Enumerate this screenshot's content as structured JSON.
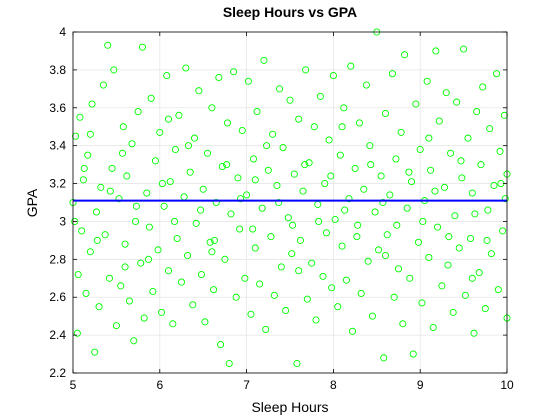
{
  "chart_data": {
    "type": "scatter",
    "title": "Sleep Hours vs GPA",
    "xlabel": "Sleep Hours",
    "ylabel": "GPA",
    "xlim": [
      5,
      10
    ],
    "ylim": [
      2.2,
      4
    ],
    "xticks": [
      5,
      6,
      7,
      8,
      9,
      10
    ],
    "xtick_labels": [
      "5",
      "6",
      "7",
      "8",
      "9",
      "10"
    ],
    "yticks": [
      2.2,
      2.4,
      2.6,
      2.8,
      3,
      3.2,
      3.4,
      3.6,
      3.8,
      4
    ],
    "ytick_labels": [
      "2.2",
      "2.4",
      "2.6",
      "2.8",
      "3",
      "3.2",
      "3.4",
      "3.6",
      "3.8",
      "4"
    ],
    "grid": true,
    "series": [
      {
        "type": "scatter",
        "marker": "circle-open",
        "color": "#00ff00",
        "points": [
          [
            5.0,
            3.1
          ],
          [
            5.03,
            3.45
          ],
          [
            5.05,
            2.41
          ],
          [
            5.06,
            2.72
          ],
          [
            5.08,
            3.55
          ],
          [
            5.1,
            2.95
          ],
          [
            5.12,
            3.22
          ],
          [
            5.15,
            2.62
          ],
          [
            5.17,
            3.35
          ],
          [
            5.2,
            2.84
          ],
          [
            5.22,
            3.62
          ],
          [
            5.25,
            2.31
          ],
          [
            5.27,
            3.05
          ],
          [
            5.3,
            2.55
          ],
          [
            5.32,
            3.18
          ],
          [
            5.35,
            3.72
          ],
          [
            5.37,
            2.93
          ],
          [
            5.4,
            3.93
          ],
          [
            5.42,
            2.7
          ],
          [
            5.45,
            3.28
          ],
          [
            5.47,
            3.8
          ],
          [
            5.5,
            2.45
          ],
          [
            5.53,
            3.12
          ],
          [
            5.55,
            2.66
          ],
          [
            5.58,
            3.5
          ],
          [
            5.6,
            2.88
          ],
          [
            5.62,
            3.24
          ],
          [
            5.65,
            2.58
          ],
          [
            5.68,
            3.41
          ],
          [
            5.7,
            2.37
          ],
          [
            5.72,
            3.0
          ],
          [
            5.75,
            3.58
          ],
          [
            5.78,
            2.78
          ],
          [
            5.8,
            3.92
          ],
          [
            5.82,
            2.49
          ],
          [
            5.85,
            3.15
          ],
          [
            5.88,
            2.97
          ],
          [
            5.9,
            3.65
          ],
          [
            5.92,
            2.63
          ],
          [
            5.95,
            3.32
          ],
          [
            5.98,
            2.85
          ],
          [
            6.0,
            3.47
          ],
          [
            6.02,
            2.52
          ],
          [
            6.05,
            3.08
          ],
          [
            6.08,
            3.77
          ],
          [
            6.1,
            2.74
          ],
          [
            6.12,
            3.21
          ],
          [
            6.15,
            2.46
          ],
          [
            6.18,
            3.38
          ],
          [
            6.2,
            2.91
          ],
          [
            6.22,
            3.56
          ],
          [
            6.25,
            2.68
          ],
          [
            6.28,
            3.13
          ],
          [
            6.3,
            3.81
          ],
          [
            6.32,
            2.82
          ],
          [
            6.35,
            3.26
          ],
          [
            6.38,
            2.56
          ],
          [
            6.4,
            3.44
          ],
          [
            6.42,
            2.99
          ],
          [
            6.45,
            3.69
          ],
          [
            6.48,
            2.72
          ],
          [
            6.5,
            3.17
          ],
          [
            6.52,
            2.47
          ],
          [
            6.55,
            3.36
          ],
          [
            6.58,
            2.89
          ],
          [
            6.6,
            3.6
          ],
          [
            6.62,
            2.64
          ],
          [
            6.65,
            3.1
          ],
          [
            6.68,
            3.76
          ],
          [
            6.7,
            2.35
          ],
          [
            6.72,
            3.29
          ],
          [
            6.75,
            2.8
          ],
          [
            6.78,
            3.52
          ],
          [
            6.8,
            2.25
          ],
          [
            6.82,
            3.04
          ],
          [
            6.85,
            3.79
          ],
          [
            6.88,
            2.6
          ],
          [
            6.9,
            3.23
          ],
          [
            6.92,
            2.96
          ],
          [
            6.95,
            3.48
          ],
          [
            6.98,
            2.7
          ],
          [
            7.0,
            3.14
          ],
          [
            7.02,
            3.74
          ],
          [
            7.05,
            2.51
          ],
          [
            7.08,
            3.33
          ],
          [
            7.1,
            2.86
          ],
          [
            7.12,
            3.58
          ],
          [
            7.15,
            2.67
          ],
          [
            7.18,
            3.07
          ],
          [
            7.2,
            3.85
          ],
          [
            7.22,
            2.43
          ],
          [
            7.25,
            3.27
          ],
          [
            7.28,
            2.92
          ],
          [
            7.3,
            3.46
          ],
          [
            7.32,
            2.61
          ],
          [
            7.35,
            3.19
          ],
          [
            7.38,
            3.7
          ],
          [
            7.4,
            2.76
          ],
          [
            7.42,
            3.39
          ],
          [
            7.45,
            2.53
          ],
          [
            7.48,
            3.02
          ],
          [
            7.5,
            3.64
          ],
          [
            7.52,
            2.83
          ],
          [
            7.55,
            3.25
          ],
          [
            7.58,
            2.25
          ],
          [
            7.6,
            3.54
          ],
          [
            7.62,
            2.9
          ],
          [
            7.65,
            3.16
          ],
          [
            7.68,
            3.8
          ],
          [
            7.7,
            2.59
          ],
          [
            7.72,
            3.31
          ],
          [
            7.75,
            2.78
          ],
          [
            7.78,
            3.5
          ],
          [
            7.8,
            2.48
          ],
          [
            7.82,
            3.09
          ],
          [
            7.85,
            3.66
          ],
          [
            7.88,
            2.71
          ],
          [
            7.9,
            3.2
          ],
          [
            7.92,
            2.94
          ],
          [
            7.95,
            3.43
          ],
          [
            7.98,
            2.65
          ],
          [
            8.0,
            3.77
          ],
          [
            8.02,
            3.01
          ],
          [
            8.05,
            2.55
          ],
          [
            8.08,
            3.35
          ],
          [
            8.1,
            2.87
          ],
          [
            8.12,
            3.6
          ],
          [
            8.15,
            2.69
          ],
          [
            8.18,
            3.12
          ],
          [
            8.2,
            3.82
          ],
          [
            8.22,
            2.42
          ],
          [
            8.25,
            3.28
          ],
          [
            8.28,
            2.98
          ],
          [
            8.3,
            3.52
          ],
          [
            8.32,
            2.62
          ],
          [
            8.35,
            3.17
          ],
          [
            8.38,
            3.72
          ],
          [
            8.4,
            2.79
          ],
          [
            8.42,
            3.4
          ],
          [
            8.45,
            2.5
          ],
          [
            8.48,
            3.05
          ],
          [
            8.5,
            4.0
          ],
          [
            8.52,
            2.85
          ],
          [
            8.55,
            3.24
          ],
          [
            8.58,
            2.28
          ],
          [
            8.6,
            3.57
          ],
          [
            8.62,
            2.93
          ],
          [
            8.65,
            3.14
          ],
          [
            8.68,
            3.78
          ],
          [
            8.7,
            2.6
          ],
          [
            8.72,
            3.33
          ],
          [
            8.75,
            2.75
          ],
          [
            8.78,
            3.47
          ],
          [
            8.8,
            2.46
          ],
          [
            8.82,
            3.88
          ],
          [
            8.85,
            3.07
          ],
          [
            8.88,
            2.7
          ],
          [
            8.9,
            3.21
          ],
          [
            8.92,
            2.3
          ],
          [
            8.95,
            3.62
          ],
          [
            8.98,
            2.89
          ],
          [
            9.0,
            3.38
          ],
          [
            9.02,
            2.57
          ],
          [
            9.05,
            3.11
          ],
          [
            9.08,
            3.74
          ],
          [
            9.1,
            2.81
          ],
          [
            9.12,
            3.27
          ],
          [
            9.15,
            2.44
          ],
          [
            9.18,
            3.9
          ],
          [
            9.2,
            2.97
          ],
          [
            9.22,
            3.53
          ],
          [
            9.25,
            2.66
          ],
          [
            9.28,
            3.18
          ],
          [
            9.3,
            3.68
          ],
          [
            9.32,
            2.77
          ],
          [
            9.35,
            3.36
          ],
          [
            9.38,
            2.52
          ],
          [
            9.4,
            3.03
          ],
          [
            9.42,
            3.63
          ],
          [
            9.45,
            2.86
          ],
          [
            9.48,
            3.23
          ],
          [
            9.5,
            3.91
          ],
          [
            9.52,
            2.61
          ],
          [
            9.55,
            3.44
          ],
          [
            9.58,
            2.91
          ],
          [
            9.6,
            3.15
          ],
          [
            9.62,
            2.41
          ],
          [
            9.65,
            3.58
          ],
          [
            9.68,
            2.73
          ],
          [
            9.7,
            3.3
          ],
          [
            9.72,
            3.71
          ],
          [
            9.75,
            2.54
          ],
          [
            9.78,
            3.06
          ],
          [
            9.8,
            3.49
          ],
          [
            9.82,
            2.83
          ],
          [
            9.85,
            3.19
          ],
          [
            9.88,
            3.78
          ],
          [
            9.9,
            2.64
          ],
          [
            9.92,
            3.37
          ],
          [
            9.95,
            2.95
          ],
          [
            9.97,
            3.56
          ],
          [
            10.0,
            2.49
          ],
          [
            10.0,
            3.25
          ],
          [
            5.02,
            3.0
          ],
          [
            5.13,
            3.28
          ],
          [
            5.28,
            2.9
          ],
          [
            5.43,
            3.16
          ],
          [
            5.57,
            3.36
          ],
          [
            5.73,
            3.08
          ],
          [
            5.87,
            2.8
          ],
          [
            6.03,
            3.2
          ],
          [
            6.17,
            3.0
          ],
          [
            6.33,
            3.4
          ],
          [
            6.47,
            3.06
          ],
          [
            6.63,
            2.9
          ],
          [
            6.77,
            3.3
          ],
          [
            6.93,
            3.12
          ],
          [
            7.07,
            2.96
          ],
          [
            7.23,
            3.4
          ],
          [
            7.37,
            3.1
          ],
          [
            7.53,
            2.98
          ],
          [
            7.67,
            3.3
          ],
          [
            7.83,
            3.0
          ],
          [
            7.97,
            3.24
          ],
          [
            8.13,
            3.06
          ],
          [
            8.27,
            2.92
          ],
          [
            8.43,
            3.3
          ],
          [
            8.57,
            3.1
          ],
          [
            8.73,
            2.98
          ],
          [
            8.87,
            3.26
          ],
          [
            9.03,
            3.0
          ],
          [
            9.17,
            3.16
          ],
          [
            9.33,
            2.92
          ],
          [
            9.47,
            3.32
          ],
          [
            9.63,
            3.04
          ],
          [
            9.77,
            2.9
          ],
          [
            9.93,
            3.2
          ],
          [
            5.2,
            3.46
          ],
          [
            5.6,
            2.76
          ],
          [
            6.1,
            3.54
          ],
          [
            6.6,
            2.84
          ],
          [
            7.1,
            3.22
          ],
          [
            7.6,
            2.74
          ],
          [
            8.1,
            3.5
          ],
          [
            8.6,
            2.82
          ],
          [
            9.1,
            3.44
          ],
          [
            9.6,
            2.7
          ],
          [
            9.98,
            3.12
          ]
        ]
      },
      {
        "type": "line",
        "color": "#0000ff",
        "points": [
          [
            5,
            3.11
          ],
          [
            10,
            3.11
          ]
        ]
      }
    ]
  }
}
